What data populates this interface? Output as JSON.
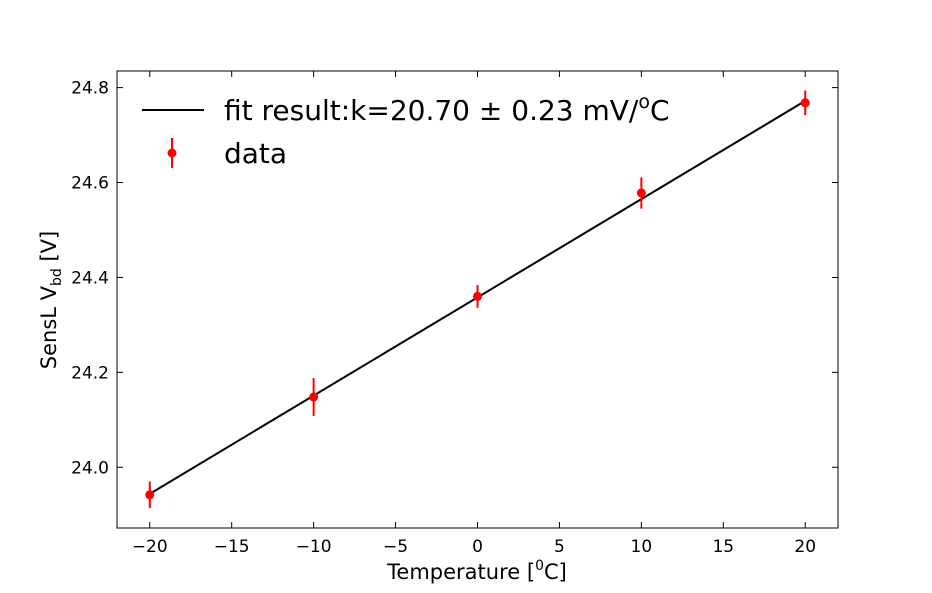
{
  "chart_data": {
    "type": "scatter",
    "title": "",
    "xlabel_prefix": "Temperature [",
    "xlabel_sup": "0",
    "xlabel_suffix": "C]",
    "ylabel_prefix": "SensL V",
    "ylabel_sub": "bd",
    "ylabel_suffix": " [V]",
    "xlim": [
      -22,
      22
    ],
    "ylim": [
      23.872,
      24.835
    ],
    "xticks": [
      -20,
      -15,
      -10,
      -5,
      0,
      5,
      10,
      15,
      20
    ],
    "xtick_labels": [
      "−20",
      "−15",
      "−10",
      "−5",
      "0",
      "5",
      "10",
      "15",
      "20"
    ],
    "yticks": [
      24.0,
      24.2,
      24.4,
      24.6,
      24.8
    ],
    "ytick_labels": [
      "24.0",
      "24.2",
      "24.4",
      "24.6",
      "24.8"
    ],
    "series": [
      {
        "name": "data",
        "kind": "errorbar",
        "color": "#ff0000",
        "x": [
          -20,
          -10,
          0,
          10,
          20
        ],
        "y": [
          23.942,
          24.148,
          24.36,
          24.578,
          24.768
        ],
        "yerr": [
          0.028,
          0.04,
          0.024,
          0.033,
          0.026
        ]
      },
      {
        "name": "fit result",
        "kind": "line",
        "color": "#000000",
        "x": [
          -20,
          20
        ],
        "y": [
          23.944,
          24.772
        ]
      }
    ],
    "legend": {
      "placement": "top-left",
      "fit_label_prefix": "fit result:k=20.70 ± 0.23 mV/",
      "fit_label_sup": "o",
      "fit_label_suffix": "C",
      "data_label": "data"
    }
  }
}
